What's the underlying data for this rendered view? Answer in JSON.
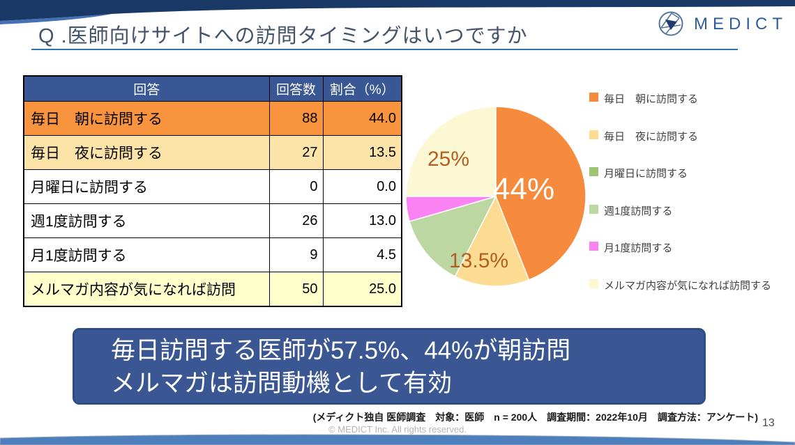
{
  "slide": {
    "title": "Q .医師向けサイトへの訪問タイミングはいつですか",
    "page_number": "13",
    "source_note": "(メディクト独自 医師調査　対象：医師　n = 200人　調査期間：2022年10月　調査方法：アンケート)",
    "copyright": "© MEDICT Inc.  All rights reserved."
  },
  "logo": {
    "text": "MEDICT",
    "icon": "medict-aperture-globe-icon",
    "text_color": "#2e5d9e"
  },
  "table": {
    "headers": [
      "回答",
      "回答数",
      "割合（%）"
    ],
    "header_bg": "#3a5795",
    "header_text_color": "#ffffff",
    "rows": [
      {
        "answer": "毎日　朝に訪問する",
        "count": "88",
        "percent": "44.0",
        "row_color": "#f8943e"
      },
      {
        "answer": "毎日　夜に訪問する",
        "count": "27",
        "percent": "13.5",
        "row_color": "#fce4a8"
      },
      {
        "answer": "月曜日に訪問する",
        "count": "0",
        "percent": "0.0",
        "row_color": "#ffffff"
      },
      {
        "answer": "週1度訪問する",
        "count": "26",
        "percent": "13.0",
        "row_color": "#ffffff"
      },
      {
        "answer": "月1度訪問する",
        "count": "9",
        "percent": "4.5",
        "row_color": "#ffffff"
      },
      {
        "answer": "メルマガ内容が気になれば訪問",
        "count": "50",
        "percent": "25.0",
        "row_color": "#ffffcc"
      }
    ]
  },
  "chart_data": {
    "type": "pie",
    "categories": [
      "毎日　朝に訪問する",
      "毎日　夜に訪問する",
      "月曜日に訪問する",
      "週1度訪問する",
      "月1度訪問する",
      "メルマガ内容が気になれば訪問する"
    ],
    "values": [
      44,
      13.5,
      0,
      13,
      4.5,
      25
    ],
    "counts": [
      88,
      27,
      0,
      26,
      9,
      50
    ],
    "unit": "%",
    "slice_colors": [
      "#f68b3d",
      "#fbdc92",
      "#9ec571",
      "#bdd7a3",
      "#fb82f2",
      "#fcf8d3"
    ],
    "start_angle": "top",
    "direction": "clockwise",
    "legend_position": "right",
    "pie_labels": [
      {
        "text": "44%",
        "color": "#ffffff"
      },
      {
        "text": "13.5%",
        "color": "#b45e22"
      },
      {
        "text": "25%",
        "color": "#b45e22"
      }
    ]
  },
  "legend": {
    "items": [
      {
        "label": "毎日　朝に訪問する",
        "color": "#f68b3d"
      },
      {
        "label": "毎日　夜に訪問する",
        "color": "#fbdc92"
      },
      {
        "label": "月曜日に訪問する",
        "color": "#9ec571"
      },
      {
        "label": "週1度訪問する",
        "color": "#bdd7a3"
      },
      {
        "label": "月1度訪問する",
        "color": "#fb82f2"
      },
      {
        "label": "メルマガ内容が気になれば訪問する",
        "color": "#fdf9cf"
      }
    ]
  },
  "banner": {
    "line1": "毎日訪問する医師が57.5%、44%が朝訪問",
    "line2": "メルマガは訪問動機として有効",
    "bg_color": "#3a5794",
    "text_color": "#ffffff"
  },
  "colors": {
    "top_band": "#1a3866",
    "top_band_accent": "#4470b4",
    "bottom_wave": "#4c7fbb",
    "title_text": "#44546a",
    "title_underline": "#2e74b5"
  }
}
